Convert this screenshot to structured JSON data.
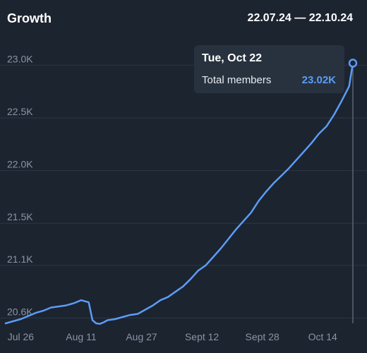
{
  "header": {
    "title": "Growth",
    "date_range": "22.07.24 — 22.10.24"
  },
  "tooltip": {
    "date": "Tue, Oct 22",
    "label": "Total members",
    "value": "23.02K"
  },
  "colors": {
    "background": "#1c2430",
    "line": "#5b9cf6",
    "grid": "#2c3643",
    "tick_label": "#8a94a3",
    "tooltip_bg": "#28323f",
    "crosshair": "#5a6472"
  },
  "chart_data": {
    "type": "line",
    "title": "Growth",
    "xlabel": "",
    "ylabel": "",
    "grid": true,
    "legend": "none",
    "ylim": [
      20550,
      23150
    ],
    "y_ticks": [
      20600,
      21100,
      21500,
      22000,
      22500,
      23000
    ],
    "y_tick_labels": [
      "20.6K",
      "21.1K",
      "21.5K",
      "22.0K",
      "22.5K",
      "23.0K"
    ],
    "x_ticks": [
      "Jul 26",
      "Aug 11",
      "Aug 27",
      "Sept 12",
      "Sept 28",
      "Oct 14"
    ],
    "x_tick_dates": [
      "2024-07-26",
      "2024-08-11",
      "2024-08-27",
      "2024-09-12",
      "2024-09-28",
      "2024-10-14"
    ],
    "series": [
      {
        "x": [
          "2024-07-22",
          "2024-07-24",
          "2024-07-26",
          "2024-07-28",
          "2024-07-30",
          "2024-08-01",
          "2024-08-03",
          "2024-08-05",
          "2024-08-07",
          "2024-08-09",
          "2024-08-11",
          "2024-08-13",
          "2024-08-14",
          "2024-08-15",
          "2024-08-16",
          "2024-08-17",
          "2024-08-18",
          "2024-08-20",
          "2024-08-22",
          "2024-08-24",
          "2024-08-26",
          "2024-08-28",
          "2024-08-30",
          "2024-09-01",
          "2024-09-03",
          "2024-09-05",
          "2024-09-07",
          "2024-09-09",
          "2024-09-11",
          "2024-09-13",
          "2024-09-15",
          "2024-09-17",
          "2024-09-19",
          "2024-09-21",
          "2024-09-23",
          "2024-09-25",
          "2024-09-27",
          "2024-09-29",
          "2024-10-01",
          "2024-10-03",
          "2024-10-05",
          "2024-10-07",
          "2024-10-09",
          "2024-10-11",
          "2024-10-13",
          "2024-10-15",
          "2024-10-17",
          "2024-10-19",
          "2024-10-21",
          "2024-10-22"
        ],
        "y": [
          20550,
          20570,
          20590,
          20620,
          20650,
          20670,
          20700,
          20710,
          20720,
          20740,
          20770,
          20750,
          20580,
          20550,
          20545,
          20560,
          20580,
          20590,
          20610,
          20630,
          20640,
          20680,
          20720,
          20770,
          20800,
          20850,
          20900,
          20970,
          21050,
          21100,
          21180,
          21260,
          21350,
          21440,
          21520,
          21600,
          21710,
          21800,
          21880,
          21950,
          22020,
          22100,
          22180,
          22260,
          22350,
          22420,
          22530,
          22660,
          22800,
          23020
        ]
      }
    ],
    "highlight": {
      "x": "2024-10-22",
      "y": 23020
    }
  }
}
